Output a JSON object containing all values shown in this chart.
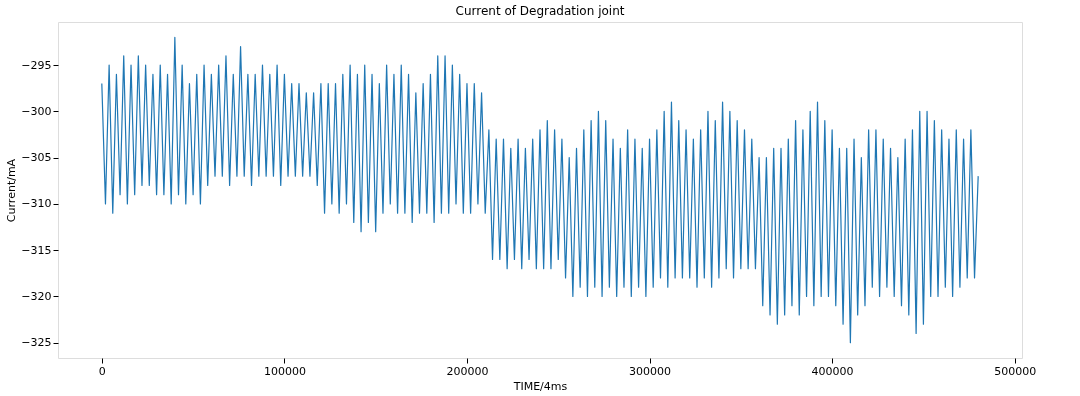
{
  "chart_data": {
    "type": "line",
    "title": "Current of Degradation joint",
    "xlabel": "TIME/4ms",
    "ylabel": "Current/mA",
    "xlim": [
      -24000,
      504000
    ],
    "ylim": [
      -326.65,
      -290.35
    ],
    "xticks": [
      0,
      100000,
      200000,
      300000,
      400000,
      500000
    ],
    "yticks": [
      {
        "value": -325,
        "label": "−325"
      },
      {
        "value": -320,
        "label": "−320"
      },
      {
        "value": -315,
        "label": "−315"
      },
      {
        "value": -310,
        "label": "−310"
      },
      {
        "value": -305,
        "label": "−305"
      },
      {
        "value": -300,
        "label": "−300"
      },
      {
        "value": -295,
        "label": "−295"
      }
    ],
    "grid": false,
    "series": [
      {
        "color": "#1f77b4",
        "x": [
          0,
          2000,
          4000,
          6000,
          8000,
          10000,
          12000,
          14000,
          16000,
          18000,
          20000,
          22000,
          24000,
          26000,
          28000,
          30000,
          32000,
          34000,
          36000,
          38000,
          40000,
          42000,
          44000,
          46000,
          48000,
          50000,
          52000,
          54000,
          56000,
          58000,
          60000,
          62000,
          64000,
          66000,
          68000,
          70000,
          72000,
          74000,
          76000,
          78000,
          80000,
          82000,
          84000,
          86000,
          88000,
          90000,
          92000,
          94000,
          96000,
          98000,
          100000,
          102000,
          104000,
          106000,
          108000,
          110000,
          112000,
          114000,
          116000,
          118000,
          120000,
          122000,
          124000,
          126000,
          128000,
          130000,
          132000,
          134000,
          136000,
          138000,
          140000,
          142000,
          144000,
          146000,
          148000,
          150000,
          152000,
          154000,
          156000,
          158000,
          160000,
          162000,
          164000,
          166000,
          168000,
          170000,
          172000,
          174000,
          176000,
          178000,
          180000,
          182000,
          184000,
          186000,
          188000,
          190000,
          192000,
          194000,
          196000,
          198000,
          200000,
          202000,
          204000,
          206000,
          208000,
          210000,
          212000,
          214000,
          216000,
          218000,
          220000,
          222000,
          224000,
          226000,
          228000,
          230000,
          232000,
          234000,
          236000,
          238000,
          240000,
          242000,
          244000,
          246000,
          248000,
          250000,
          252000,
          254000,
          256000,
          258000,
          260000,
          262000,
          264000,
          266000,
          268000,
          270000,
          272000,
          274000,
          276000,
          278000,
          280000,
          282000,
          284000,
          286000,
          288000,
          290000,
          292000,
          294000,
          296000,
          298000,
          300000,
          302000,
          304000,
          306000,
          308000,
          310000,
          312000,
          314000,
          316000,
          318000,
          320000,
          322000,
          324000,
          326000,
          328000,
          330000,
          332000,
          334000,
          336000,
          338000,
          340000,
          342000,
          344000,
          346000,
          348000,
          350000,
          352000,
          354000,
          356000,
          358000,
          360000,
          362000,
          364000,
          366000,
          368000,
          370000,
          372000,
          374000,
          376000,
          378000,
          380000,
          382000,
          384000,
          386000,
          388000,
          390000,
          392000,
          394000,
          396000,
          398000,
          400000,
          402000,
          404000,
          406000,
          408000,
          410000,
          412000,
          414000,
          416000,
          418000,
          420000,
          422000,
          424000,
          426000,
          428000,
          430000,
          432000,
          434000,
          436000,
          438000,
          440000,
          442000,
          444000,
          446000,
          448000,
          450000,
          452000,
          454000,
          456000,
          458000,
          460000,
          462000,
          464000,
          466000,
          468000,
          470000,
          472000,
          474000,
          476000,
          478000,
          480000
        ],
        "values": [
          -297,
          -310,
          -295,
          -311,
          -296,
          -309,
          -294,
          -310,
          -295,
          -309,
          -294,
          -308,
          -295,
          -308,
          -296,
          -309,
          -295,
          -309,
          -296,
          -310,
          -292,
          -309,
          -295,
          -310,
          -297,
          -309,
          -296,
          -310,
          -295,
          -308,
          -296,
          -307,
          -295,
          -307,
          -294,
          -308,
          -296,
          -307,
          -293,
          -307,
          -296,
          -308,
          -296,
          -307,
          -295,
          -307,
          -296,
          -307,
          -295,
          -308,
          -296,
          -307,
          -297,
          -307,
          -297,
          -307,
          -298,
          -307,
          -298,
          -308,
          -297,
          -311,
          -297,
          -310,
          -297,
          -311,
          -296,
          -310,
          -295,
          -312,
          -296,
          -313,
          -295,
          -312,
          -296,
          -313,
          -297,
          -311,
          -295,
          -310,
          -296,
          -311,
          -295,
          -311,
          -296,
          -312,
          -298,
          -311,
          -297,
          -311,
          -296,
          -312,
          -294,
          -311,
          -294,
          -311,
          -295,
          -310,
          -296,
          -311,
          -297,
          -311,
          -297,
          -310,
          -298,
          -311,
          -302,
          -316,
          -303,
          -316,
          -303,
          -317,
          -304,
          -316,
          -303,
          -317,
          -304,
          -316,
          -303,
          -317,
          -302,
          -317,
          -301,
          -317,
          -302,
          -316,
          -303,
          -318,
          -305,
          -320,
          -304,
          -319,
          -302,
          -320,
          -301,
          -319,
          -300,
          -320,
          -301,
          -319,
          -303,
          -320,
          -304,
          -319,
          -302,
          -320,
          -303,
          -319,
          -304,
          -320,
          -303,
          -319,
          -302,
          -318,
          -300,
          -319,
          -299,
          -318,
          -301,
          -318,
          -302,
          -318,
          -303,
          -319,
          -302,
          -318,
          -300,
          -319,
          -301,
          -318,
          -299,
          -317,
          -300,
          -318,
          -301,
          -317,
          -302,
          -317,
          -303,
          -317,
          -305,
          -321,
          -305,
          -322,
          -304,
          -323,
          -304,
          -322,
          -303,
          -321,
          -301,
          -322,
          -302,
          -320,
          -300,
          -321,
          -299,
          -320,
          -301,
          -320,
          -302,
          -321,
          -304,
          -323,
          -304,
          -325,
          -303,
          -322,
          -305,
          -321,
          -302,
          -319,
          -302,
          -320,
          -303,
          -319,
          -304,
          -320,
          -305,
          -321,
          -303,
          -322,
          -302,
          -324,
          -300,
          -323,
          -300,
          -320,
          -301,
          -320,
          -302,
          -319,
          -303,
          -320,
          -302,
          -319,
          -303,
          -318,
          -302,
          -318,
          -307
        ]
      }
    ]
  }
}
